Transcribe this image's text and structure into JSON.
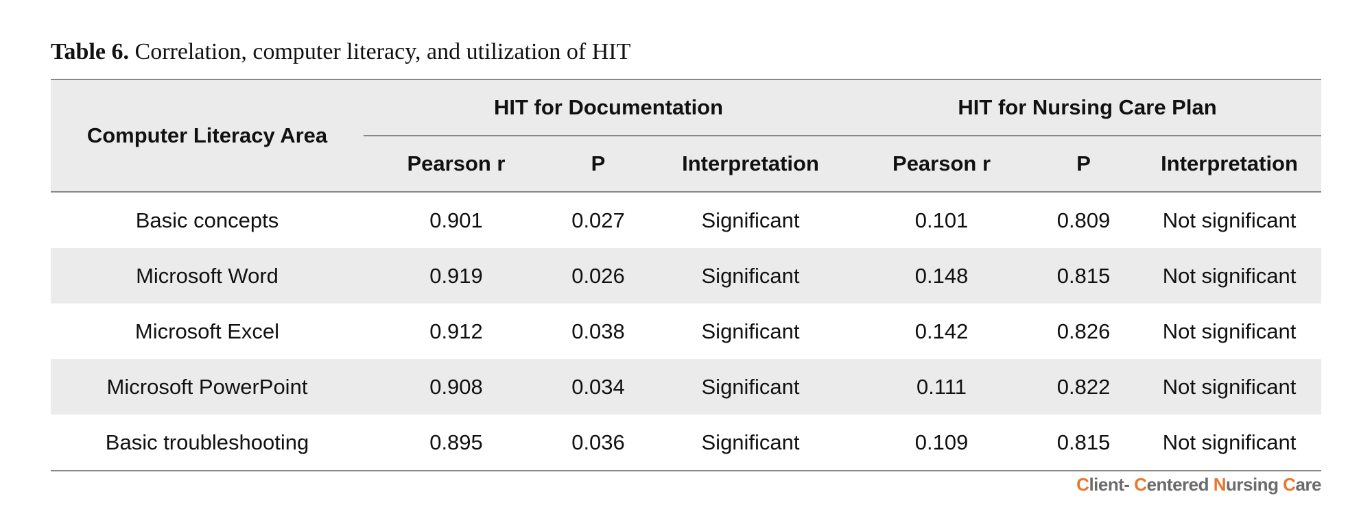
{
  "caption": {
    "label": "Table 6.",
    "text": "Correlation, computer literacy, and utilization of HIT"
  },
  "table": {
    "area_header": "Computer Literacy Area",
    "groups": [
      "HIT for Documentation",
      "HIT for Nursing Care Plan"
    ],
    "subheaders": [
      "Pearson r",
      "P",
      "Interpretation",
      "Pearson r",
      "P",
      "Interpretation"
    ],
    "rows": [
      [
        "Basic concepts",
        "0.901",
        "0.027",
        "Significant",
        "0.101",
        "0.809",
        "Not significant"
      ],
      [
        "Microsoft Word",
        "0.919",
        "0.026",
        "Significant",
        "0.148",
        "0.815",
        "Not significant"
      ],
      [
        "Microsoft Excel",
        "0.912",
        "0.038",
        "Significant",
        "0.142",
        "0.826",
        "Not significant"
      ],
      [
        "Microsoft PowerPoint",
        "0.908",
        "0.034",
        "Significant",
        "0.111",
        "0.822",
        "Not significant"
      ],
      [
        "Basic troubleshooting",
        "0.895",
        "0.036",
        "Significant",
        "0.109",
        "0.815",
        "Not significant"
      ]
    ]
  },
  "brand": {
    "parts": [
      {
        "cap": "C",
        "rest": "lient- "
      },
      {
        "cap": "C",
        "rest": "entered "
      },
      {
        "cap": "N",
        "rest": "ursing "
      },
      {
        "cap": "C",
        "rest": "are"
      }
    ],
    "accent_color": "#e8762c",
    "text_color": "#6b6b6b"
  },
  "colors": {
    "band": "#ebebeb",
    "rule": "#888888"
  }
}
